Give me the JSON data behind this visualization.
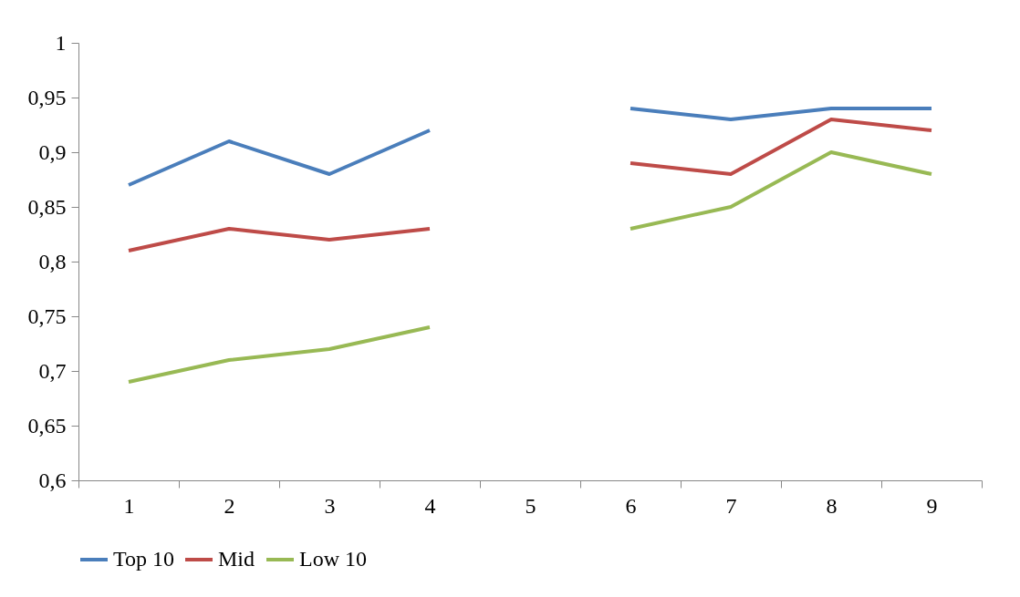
{
  "chart_data": {
    "type": "line",
    "categories": [
      "1",
      "2",
      "3",
      "4",
      "5",
      "6",
      "7",
      "8",
      "9"
    ],
    "series": [
      {
        "name": "Top 10",
        "color": "#4a7ebb",
        "values": [
          0.87,
          0.91,
          0.88,
          0.92,
          null,
          0.94,
          0.93,
          0.94,
          0.94
        ]
      },
      {
        "name": "Mid",
        "color": "#be4b48",
        "values": [
          0.81,
          0.83,
          0.82,
          0.83,
          null,
          0.89,
          0.88,
          0.93,
          0.92
        ]
      },
      {
        "name": "Low 10",
        "color": "#98b954",
        "values": [
          0.69,
          0.71,
          0.72,
          0.74,
          null,
          0.83,
          0.85,
          0.9,
          0.88
        ]
      }
    ],
    "ylim": [
      0.6,
      1
    ],
    "yticks": [
      {
        "value": 0.6,
        "label": "0,6"
      },
      {
        "value": 0.65,
        "label": "0,65"
      },
      {
        "value": 0.7,
        "label": "0,7"
      },
      {
        "value": 0.75,
        "label": "0,75"
      },
      {
        "value": 0.8,
        "label": "0,8"
      },
      {
        "value": 0.85,
        "label": "0,85"
      },
      {
        "value": 0.9,
        "label": "0,9"
      },
      {
        "value": 0.95,
        "label": "0,95"
      },
      {
        "value": 1,
        "label": "1"
      }
    ],
    "grid": false,
    "legend": "bottom"
  }
}
